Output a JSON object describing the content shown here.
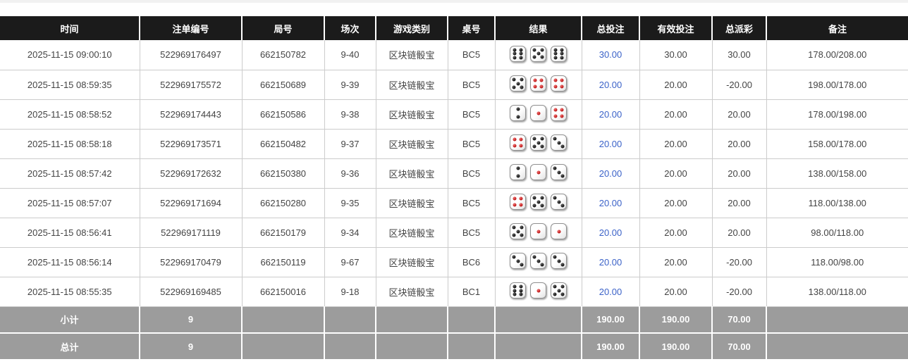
{
  "colors": {
    "header_bg": "#1b1b1b",
    "link_blue": "#3b62c8",
    "negative_red": "#e03b3b",
    "summary_bg": "#9c9c9c",
    "pip_black": "#111111",
    "pip_red": "#bb0d0d"
  },
  "table": {
    "columns": [
      {
        "key": "time",
        "label": "时间"
      },
      {
        "key": "bet_id",
        "label": "注单编号"
      },
      {
        "key": "round_id",
        "label": "局号"
      },
      {
        "key": "session",
        "label": "场次"
      },
      {
        "key": "game_type",
        "label": "游戏类别"
      },
      {
        "key": "table_no",
        "label": "桌号"
      },
      {
        "key": "result",
        "label": "结果"
      },
      {
        "key": "total_bet",
        "label": "总投注"
      },
      {
        "key": "valid_bet",
        "label": "有效投注"
      },
      {
        "key": "payout",
        "label": "总派彩"
      },
      {
        "key": "remark",
        "label": "备注"
      }
    ],
    "rows": [
      {
        "time": "2025-11-15 09:00:10",
        "bet_id": "522969176497",
        "round_id": "662150782",
        "session": "9-40",
        "game_type": "区块链骰宝",
        "table_no": "BC5",
        "dice": [
          6,
          5,
          6
        ],
        "total_bet": "30.00",
        "valid_bet": "30.00",
        "payout": "30.00",
        "remark": "178.00/208.00"
      },
      {
        "time": "2025-11-15 08:59:35",
        "bet_id": "522969175572",
        "round_id": "662150689",
        "session": "9-39",
        "game_type": "区块链骰宝",
        "table_no": "BC5",
        "dice": [
          5,
          4,
          4
        ],
        "total_bet": "20.00",
        "valid_bet": "20.00",
        "payout": "-20.00",
        "remark": "198.00/178.00"
      },
      {
        "time": "2025-11-15 08:58:52",
        "bet_id": "522969174443",
        "round_id": "662150586",
        "session": "9-38",
        "game_type": "区块链骰宝",
        "table_no": "BC5",
        "dice": [
          2,
          1,
          4
        ],
        "total_bet": "20.00",
        "valid_bet": "20.00",
        "payout": "20.00",
        "remark": "178.00/198.00"
      },
      {
        "time": "2025-11-15 08:58:18",
        "bet_id": "522969173571",
        "round_id": "662150482",
        "session": "9-37",
        "game_type": "区块链骰宝",
        "table_no": "BC5",
        "dice": [
          4,
          5,
          3
        ],
        "total_bet": "20.00",
        "valid_bet": "20.00",
        "payout": "20.00",
        "remark": "158.00/178.00"
      },
      {
        "time": "2025-11-15 08:57:42",
        "bet_id": "522969172632",
        "round_id": "662150380",
        "session": "9-36",
        "game_type": "区块链骰宝",
        "table_no": "BC5",
        "dice": [
          2,
          1,
          3
        ],
        "total_bet": "20.00",
        "valid_bet": "20.00",
        "payout": "20.00",
        "remark": "138.00/158.00"
      },
      {
        "time": "2025-11-15 08:57:07",
        "bet_id": "522969171694",
        "round_id": "662150280",
        "session": "9-35",
        "game_type": "区块链骰宝",
        "table_no": "BC5",
        "dice": [
          4,
          5,
          3
        ],
        "total_bet": "20.00",
        "valid_bet": "20.00",
        "payout": "20.00",
        "remark": "118.00/138.00"
      },
      {
        "time": "2025-11-15 08:56:41",
        "bet_id": "522969171119",
        "round_id": "662150179",
        "session": "9-34",
        "game_type": "区块链骰宝",
        "table_no": "BC5",
        "dice": [
          5,
          1,
          1
        ],
        "total_bet": "20.00",
        "valid_bet": "20.00",
        "payout": "20.00",
        "remark": "98.00/118.00"
      },
      {
        "time": "2025-11-15 08:56:14",
        "bet_id": "522969170479",
        "round_id": "662150119",
        "session": "9-67",
        "game_type": "区块链骰宝",
        "table_no": "BC6",
        "dice": [
          3,
          3,
          3
        ],
        "total_bet": "20.00",
        "valid_bet": "20.00",
        "payout": "-20.00",
        "remark": "118.00/98.00"
      },
      {
        "time": "2025-11-15 08:55:35",
        "bet_id": "522969169485",
        "round_id": "662150016",
        "session": "9-18",
        "game_type": "区块链骰宝",
        "table_no": "BC1",
        "dice": [
          6,
          1,
          5
        ],
        "total_bet": "20.00",
        "valid_bet": "20.00",
        "payout": "-20.00",
        "remark": "138.00/118.00"
      }
    ],
    "summary_rows": [
      {
        "label": "小计",
        "count": "9",
        "total_bet": "190.00",
        "valid_bet": "190.00",
        "payout": "70.00",
        "remark": ""
      },
      {
        "label": "总计",
        "count": "9",
        "total_bet": "190.00",
        "valid_bet": "190.00",
        "payout": "70.00",
        "remark": ""
      }
    ]
  }
}
